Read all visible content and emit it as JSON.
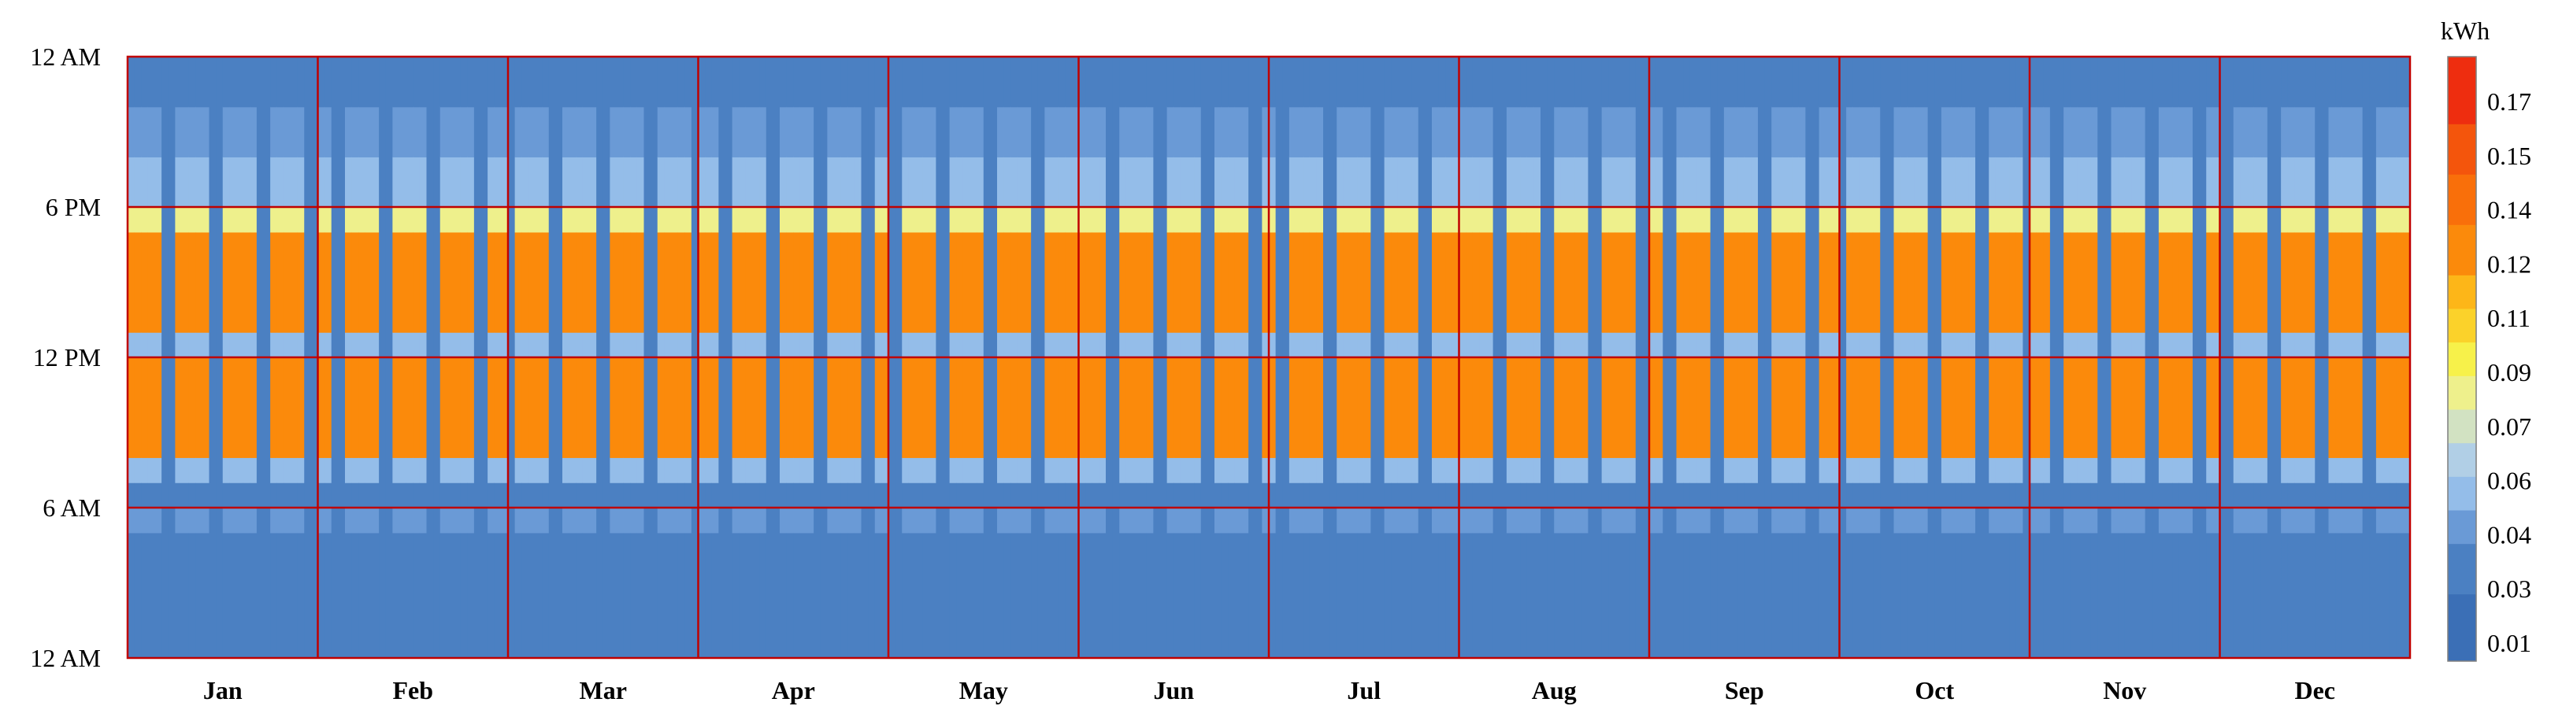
{
  "chart_data": {
    "type": "heatmap",
    "title": "",
    "xlabel": "",
    "ylabel": "",
    "x_categories": [
      "Jan",
      "Feb",
      "Mar",
      "Apr",
      "May",
      "Jun",
      "Jul",
      "Aug",
      "Sep",
      "Oct",
      "Nov",
      "Dec"
    ],
    "y_ticks": [
      {
        "label": "12 AM",
        "hour": 24
      },
      {
        "label": "6 PM",
        "hour": 18
      },
      {
        "label": "12 PM",
        "hour": 12
      },
      {
        "label": "6 AM",
        "hour": 6
      },
      {
        "label": "12 AM",
        "hour": 0
      }
    ],
    "ylim": [
      0,
      24
    ],
    "day_cycle": [
      "weekday",
      "weekday",
      "weekday",
      "weekday",
      "weekday",
      "weekend",
      "weekend"
    ],
    "weekday_profile": [
      {
        "from": 0,
        "to": 5,
        "value": 0.03
      },
      {
        "from": 5,
        "to": 6,
        "value": 0.035
      },
      {
        "from": 6,
        "to": 7,
        "value": 0.03
      },
      {
        "from": 7,
        "to": 8,
        "value": 0.045
      },
      {
        "from": 8,
        "to": 12,
        "value": 0.125
      },
      {
        "from": 12,
        "to": 13,
        "value": 0.05
      },
      {
        "from": 13,
        "to": 17,
        "value": 0.125
      },
      {
        "from": 17,
        "to": 18,
        "value": 0.08
      },
      {
        "from": 18,
        "to": 20,
        "value": 0.045
      },
      {
        "from": 20,
        "to": 22,
        "value": 0.04
      },
      {
        "from": 22,
        "to": 24,
        "value": 0.03
      }
    ],
    "weekend_profile": [
      {
        "from": 0,
        "to": 24,
        "value": 0.03
      }
    ],
    "colorbar": {
      "title": "kWh",
      "tick_labels": [
        "0.01",
        "0.03",
        "0.04",
        "0.06",
        "0.07",
        "0.09",
        "0.11",
        "0.12",
        "0.14",
        "0.15",
        "0.17"
      ],
      "steps": [
        {
          "min": 0.0,
          "max": 0.02,
          "color": "#3b6fb6"
        },
        {
          "min": 0.02,
          "max": 0.035,
          "color": "#4b80c2"
        },
        {
          "min": 0.035,
          "max": 0.045,
          "color": "#6a9ad6"
        },
        {
          "min": 0.045,
          "max": 0.055,
          "color": "#94bde9"
        },
        {
          "min": 0.055,
          "max": 0.065,
          "color": "#b1cfe6"
        },
        {
          "min": 0.065,
          "max": 0.075,
          "color": "#d2e2c2"
        },
        {
          "min": 0.075,
          "max": 0.085,
          "color": "#eef08c"
        },
        {
          "min": 0.085,
          "max": 0.095,
          "color": "#f7f14a"
        },
        {
          "min": 0.095,
          "max": 0.105,
          "color": "#fbd22a"
        },
        {
          "min": 0.105,
          "max": 0.115,
          "color": "#fdb618"
        },
        {
          "min": 0.115,
          "max": 0.13,
          "color": "#fb8a0b"
        },
        {
          "min": 0.13,
          "max": 0.145,
          "color": "#f96f0a"
        },
        {
          "min": 0.145,
          "max": 0.16,
          "color": "#f4550c"
        },
        {
          "min": 0.16,
          "max": 0.18,
          "color": "#ee2d0f"
        }
      ]
    },
    "gridline_color": "#c00000",
    "grid": true,
    "legend_position": "right"
  }
}
